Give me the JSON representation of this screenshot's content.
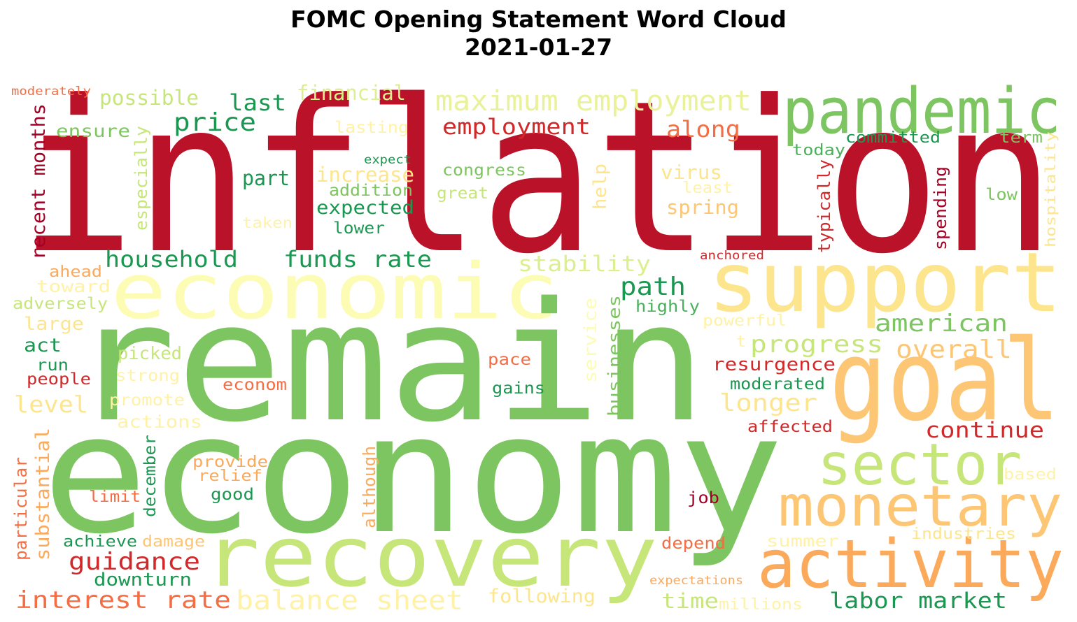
{
  "title_line1": "FOMC Opening Statement Word Cloud",
  "title_line2": "2021-01-27",
  "colors": {
    "red": "#ba1229",
    "green": "#7dc561",
    "lightgreen": "#c7e67a",
    "paleyellow": "#fcfcb4",
    "yellow": "#fde58d",
    "lightorange": "#fdc674",
    "orange": "#fba95b",
    "coral": "#f46d43",
    "darkred": "#d1282a",
    "darkgreen": "#1a9750",
    "midgreen": "#4bb05c",
    "cream": "#fff6b0"
  },
  "words": [
    {
      "text": "inflation"
    },
    {
      "text": "remain"
    },
    {
      "text": "economy"
    },
    {
      "text": "economic"
    },
    {
      "text": "support"
    },
    {
      "text": "goal"
    },
    {
      "text": "pandemic"
    },
    {
      "text": "recovery"
    },
    {
      "text": "activity"
    },
    {
      "text": "monetary"
    },
    {
      "text": "sector"
    },
    {
      "text": "maximum employment"
    },
    {
      "text": "employment"
    },
    {
      "text": "price"
    },
    {
      "text": "last"
    },
    {
      "text": "possible"
    },
    {
      "text": "financial"
    },
    {
      "text": "moderately"
    },
    {
      "text": "ensure"
    },
    {
      "text": "recent months"
    },
    {
      "text": "especially"
    },
    {
      "text": "lasting"
    },
    {
      "text": "along"
    },
    {
      "text": "committed"
    },
    {
      "text": "term"
    },
    {
      "text": "today"
    },
    {
      "text": "hospitality"
    },
    {
      "text": "expect"
    },
    {
      "text": "increase"
    },
    {
      "text": "congress"
    },
    {
      "text": "virus"
    },
    {
      "text": "least"
    },
    {
      "text": "part"
    },
    {
      "text": "addition"
    },
    {
      "text": "great"
    },
    {
      "text": "help"
    },
    {
      "text": "typically"
    },
    {
      "text": "spending"
    },
    {
      "text": "low"
    },
    {
      "text": "expected"
    },
    {
      "text": "spring"
    },
    {
      "text": "taken"
    },
    {
      "text": "lower"
    },
    {
      "text": "anchored"
    },
    {
      "text": "household"
    },
    {
      "text": "funds rate"
    },
    {
      "text": "stability"
    },
    {
      "text": "ahead"
    },
    {
      "text": "toward"
    },
    {
      "text": "path"
    },
    {
      "text": "adversely"
    },
    {
      "text": "highly"
    },
    {
      "text": "service"
    },
    {
      "text": "businesses"
    },
    {
      "text": "powerful"
    },
    {
      "text": "american"
    },
    {
      "text": "large"
    },
    {
      "text": "act"
    },
    {
      "text": "picked"
    },
    {
      "text": "progress"
    },
    {
      "text": "overall"
    },
    {
      "text": "run"
    },
    {
      "text": "pace"
    },
    {
      "text": "resurgence"
    },
    {
      "text": "people"
    },
    {
      "text": "strong"
    },
    {
      "text": "econom"
    },
    {
      "text": "moderated"
    },
    {
      "text": "gains"
    },
    {
      "text": "level"
    },
    {
      "text": "promote"
    },
    {
      "text": "longer"
    },
    {
      "text": "actions"
    },
    {
      "text": "affected"
    },
    {
      "text": "continue"
    },
    {
      "text": "substantial"
    },
    {
      "text": "december"
    },
    {
      "text": "particular"
    },
    {
      "text": "provide"
    },
    {
      "text": "relief"
    },
    {
      "text": "although"
    },
    {
      "text": "based"
    },
    {
      "text": "limit"
    },
    {
      "text": "good"
    },
    {
      "text": "job"
    },
    {
      "text": "achieve"
    },
    {
      "text": "damage"
    },
    {
      "text": "depend"
    },
    {
      "text": "summer"
    },
    {
      "text": "industries"
    },
    {
      "text": "guidance"
    },
    {
      "text": "downturn"
    },
    {
      "text": "expectations"
    },
    {
      "text": "interest rate"
    },
    {
      "text": "balance sheet"
    },
    {
      "text": "following"
    },
    {
      "text": "time"
    },
    {
      "text": "millions"
    },
    {
      "text": "labor market"
    },
    {
      "text": "t"
    }
  ]
}
